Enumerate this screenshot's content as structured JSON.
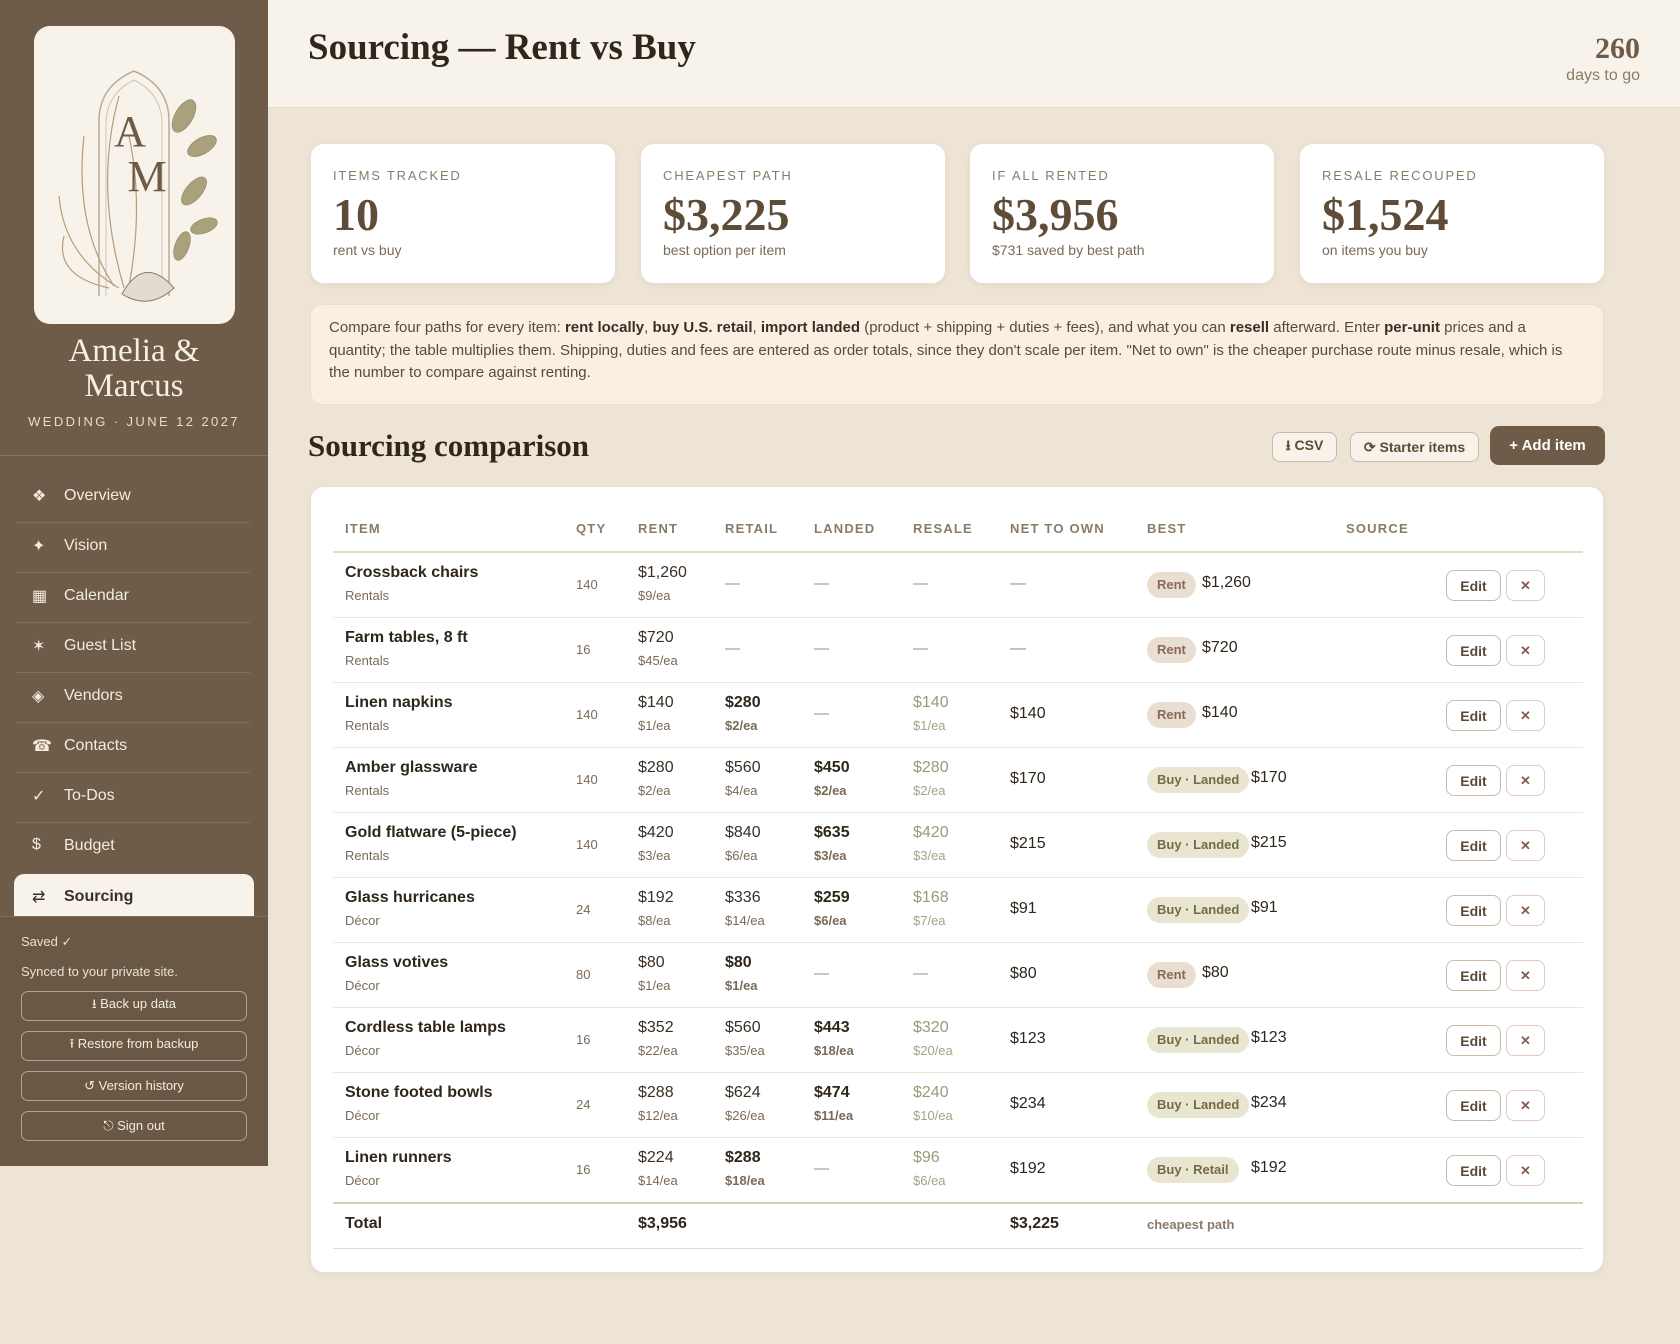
{
  "sidebar": {
    "monogram": [
      "A",
      "M"
    ],
    "couple": "Amelia & Marcus",
    "event": "WEDDING · JUNE 12 2027",
    "nav": [
      {
        "icon": "❖",
        "label": "Overview"
      },
      {
        "icon": "✦",
        "label": "Vision"
      },
      {
        "icon": "▦",
        "label": "Calendar"
      },
      {
        "icon": "✶",
        "label": "Guest List"
      },
      {
        "icon": "◈",
        "label": "Vendors"
      },
      {
        "icon": "☎",
        "label": "Contacts"
      },
      {
        "icon": "✓",
        "label": "To-Dos"
      },
      {
        "icon": "$",
        "label": "Budget"
      },
      {
        "icon": "⇄",
        "label": "Sourcing"
      }
    ],
    "active_nav": 8,
    "status": "Saved ✓",
    "sync": "Synced to your private site.",
    "buttons": [
      "⭳ Back up data",
      "⭱ Restore from backup",
      "↺ Version history",
      "⎋ Sign out"
    ]
  },
  "header": {
    "title": "Sourcing — Rent vs Buy",
    "countdown": "260",
    "countdown_label": "days to go"
  },
  "stats": [
    {
      "label": "ITEMS TRACKED",
      "value": "10",
      "note": "rent vs buy"
    },
    {
      "label": "CHEAPEST PATH",
      "value": "$3,225",
      "note": "best option per item"
    },
    {
      "label": "IF ALL RENTED",
      "value": "$3,956",
      "note": "$731 saved by best path"
    },
    {
      "label": "RESALE RECOUPED",
      "value": "$1,524",
      "note": "on items you buy"
    }
  ],
  "intro": [
    {
      "text": "Compare four paths for every item: "
    },
    {
      "text": "rent locally",
      "bold": true
    },
    {
      "text": ", "
    },
    {
      "text": "buy U.S. retail",
      "bold": true
    },
    {
      "text": ", "
    },
    {
      "text": "import landed",
      "bold": true
    },
    {
      "text": " (product + shipping + duties + fees), and what you can "
    },
    {
      "text": "resell",
      "bold": true
    },
    {
      "text": " afterward. Enter "
    },
    {
      "text": "per-unit",
      "bold": true
    },
    {
      "text": " prices and a quantity; the table multiplies them. Shipping, duties and fees are entered as order totals, since they don't scale per item. \"Net to own\" is the cheaper purchase route minus resale, which is the number to compare against renting."
    }
  ],
  "section": {
    "title": "Sourcing comparison",
    "buttons": [
      "⭳ CSV",
      "⟳ Starter items"
    ],
    "primary": "+ Add item"
  },
  "table": {
    "columns": [
      "ITEM",
      "QTY",
      "RENT",
      "RETAIL",
      "LANDED",
      "RESALE",
      "NET TO OWN",
      "BEST",
      "SOURCE"
    ],
    "row_actions": [
      "Edit",
      "✕"
    ],
    "rows": [
      {
        "item": "Crossback chairs",
        "category": "Rentals",
        "qty": "140",
        "rent": {
          "total": "$1,260",
          "each": "$9/ea"
        },
        "retail": "—",
        "landed": "—",
        "resale": "—",
        "net": "—",
        "best": "Rent",
        "best_value": "$1,260",
        "best_kind": "rent",
        "buy_route": null
      },
      {
        "item": "Farm tables, 8 ft",
        "category": "Rentals",
        "qty": "16",
        "rent": {
          "total": "$720",
          "each": "$45/ea"
        },
        "retail": "—",
        "landed": "—",
        "resale": "—",
        "net": "—",
        "best": "Rent",
        "best_value": "$720",
        "best_kind": "rent",
        "buy_route": null
      },
      {
        "item": "Linen napkins",
        "category": "Rentals",
        "qty": "140",
        "rent": {
          "total": "$140",
          "each": "$1/ea"
        },
        "retail": {
          "total": "$280",
          "each": "$2/ea"
        },
        "landed": "—",
        "resale": {
          "total": "$140",
          "each": "$1/ea"
        },
        "net": "$140",
        "best": "Rent",
        "best_value": "$140",
        "best_kind": "rent",
        "buy_route": "retail"
      },
      {
        "item": "Amber glassware",
        "category": "Rentals",
        "qty": "140",
        "rent": {
          "total": "$280",
          "each": "$2/ea"
        },
        "retail": {
          "total": "$560",
          "each": "$4/ea"
        },
        "landed": {
          "total": "$450",
          "each": "$2/ea"
        },
        "resale": {
          "total": "$280",
          "each": "$2/ea"
        },
        "net": "$170",
        "best": "Buy · Landed",
        "best_value": "$170",
        "best_kind": "buy",
        "buy_route": "landed"
      },
      {
        "item": "Gold flatware (5-piece)",
        "category": "Rentals",
        "qty": "140",
        "rent": {
          "total": "$420",
          "each": "$3/ea"
        },
        "retail": {
          "total": "$840",
          "each": "$6/ea"
        },
        "landed": {
          "total": "$635",
          "each": "$3/ea"
        },
        "resale": {
          "total": "$420",
          "each": "$3/ea"
        },
        "net": "$215",
        "best": "Buy · Landed",
        "best_value": "$215",
        "best_kind": "buy",
        "buy_route": "landed"
      },
      {
        "item": "Glass hurricanes",
        "category": "Décor",
        "qty": "24",
        "rent": {
          "total": "$192",
          "each": "$8/ea"
        },
        "retail": {
          "total": "$336",
          "each": "$14/ea"
        },
        "landed": {
          "total": "$259",
          "each": "$6/ea"
        },
        "resale": {
          "total": "$168",
          "each": "$7/ea"
        },
        "net": "$91",
        "best": "Buy · Landed",
        "best_value": "$91",
        "best_kind": "buy",
        "buy_route": "landed"
      },
      {
        "item": "Glass votives",
        "category": "Décor",
        "qty": "80",
        "rent": {
          "total": "$80",
          "each": "$1/ea"
        },
        "retail": {
          "total": "$80",
          "each": "$1/ea"
        },
        "landed": "—",
        "resale": "—",
        "net": "$80",
        "best": "Rent",
        "best_value": "$80",
        "best_kind": "rent",
        "buy_route": "retail"
      },
      {
        "item": "Cordless table lamps",
        "category": "Décor",
        "qty": "16",
        "rent": {
          "total": "$352",
          "each": "$22/ea"
        },
        "retail": {
          "total": "$560",
          "each": "$35/ea"
        },
        "landed": {
          "total": "$443",
          "each": "$18/ea"
        },
        "resale": {
          "total": "$320",
          "each": "$20/ea"
        },
        "net": "$123",
        "best": "Buy · Landed",
        "best_value": "$123",
        "best_kind": "buy",
        "buy_route": "landed"
      },
      {
        "item": "Stone footed bowls",
        "category": "Décor",
        "qty": "24",
        "rent": {
          "total": "$288",
          "each": "$12/ea"
        },
        "retail": {
          "total": "$624",
          "each": "$26/ea"
        },
        "landed": {
          "total": "$474",
          "each": "$11/ea"
        },
        "resale": {
          "total": "$240",
          "each": "$10/ea"
        },
        "net": "$234",
        "best": "Buy · Landed",
        "best_value": "$234",
        "best_kind": "buy",
        "buy_route": "landed"
      },
      {
        "item": "Linen runners",
        "category": "Décor",
        "qty": "16",
        "rent": {
          "total": "$224",
          "each": "$14/ea"
        },
        "retail": {
          "total": "$288",
          "each": "$18/ea"
        },
        "landed": "—",
        "resale": {
          "total": "$96",
          "each": "$6/ea"
        },
        "net": "$192",
        "best": "Buy · Retail",
        "best_value": "$192",
        "best_kind": "buy",
        "buy_route": "retail"
      }
    ],
    "total": {
      "label": "Total",
      "rent": "$3,956",
      "net": "$3,225",
      "note": "cheapest path"
    }
  }
}
